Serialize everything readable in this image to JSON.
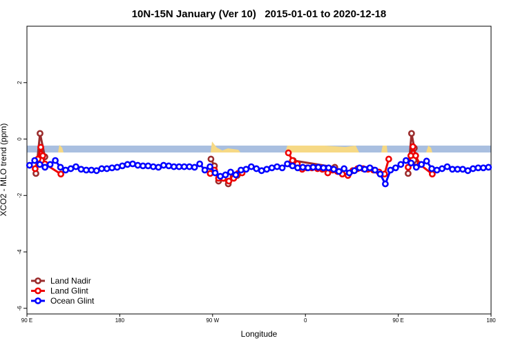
{
  "chart_data": {
    "type": "line",
    "title": "10N-15N January (Ver 10)   2015-01-01 to 2020-12-18",
    "x_label": "Longitude",
    "y_label": "XCO2 - MLO trend (ppm)",
    "xlim": [
      90,
      540
    ],
    "xticks": [
      {
        "value": 90,
        "label": "90 E"
      },
      180,
      {
        "value": 270,
        "label": "90 W"
      },
      {
        "value": 360,
        "label": "0"
      },
      {
        "value": 450,
        "label": "90 E"
      },
      {
        "value": 540,
        "label": "180"
      }
    ],
    "ylim": [
      -6.2,
      4
    ],
    "yticks": [
      -6,
      -4,
      -2,
      0,
      2
    ],
    "legend": "bottomleft",
    "series": [
      {
        "name": "Land Nadir",
        "color": "#9b2d2d",
        "x": [
          98.7,
          102.7,
          107.4,
          null,
          268.4,
          271.8,
          275.8,
          280.5,
          285.2,
          289.9,
          293.9,
          null,
          344.2,
          348.2,
          388.5,
          null,
          459.6,
          462.9,
          465.6,
          468.3
        ],
        "values": [
          -1.22,
          0.2,
          -0.63,
          null,
          -0.71,
          -0.95,
          -1.49,
          -1.39,
          -1.59,
          -1.34,
          -1.29,
          null,
          -0.88,
          -0.76,
          -1.0,
          null,
          -1.22,
          0.2,
          -0.32,
          -0.88
        ]
      },
      {
        "name": "Land Glint",
        "color": "#ee0000",
        "x": [
          98.0,
          100.7,
          103.4,
          105.4,
          107.4,
          122.9,
          null,
          267.7,
          271.8,
          275.8,
          280.5,
          285.8,
          290.5,
          294.6,
          298.6,
          null,
          343.5,
          347.5,
          352.2,
          356.9,
          361.6,
          366.3,
          371.7,
          376.4,
          381.7,
          386.4,
          391.1,
          395.8,
          401.2,
          405.9,
          410.6,
          416.0,
          420.6,
          426.0,
          431.4,
          436.7,
          440.8,
          null,
          459.6,
          462.2,
          464.2,
          466.9,
          470.9,
          483.0
        ],
        "values": [
          -1.05,
          -0.71,
          -0.29,
          -0.59,
          -0.88,
          -1.24,
          null,
          -1.22,
          -1.1,
          -1.39,
          -1.39,
          -1.49,
          -1.39,
          -1.22,
          -1.2,
          null,
          -0.49,
          -0.76,
          -0.88,
          -1.07,
          -1.02,
          -1.02,
          -1.05,
          -1.07,
          -1.2,
          -1.1,
          -1.15,
          -1.24,
          -1.29,
          -1.12,
          -1.05,
          -1.05,
          -1.07,
          -1.1,
          -1.17,
          -1.24,
          -0.71,
          null,
          -1.0,
          -0.59,
          -0.27,
          -0.59,
          -0.9,
          -1.24
        ]
      },
      {
        "name": "Ocean Glint",
        "color": "#0000ff",
        "x": [
          92.5,
          97.5,
          102.5,
          107.5,
          112.5,
          117.5,
          122.5,
          127.5,
          132.5,
          137.5,
          142.5,
          147.5,
          152.5,
          157.5,
          162.5,
          167.5,
          172.5,
          177.5,
          182.5,
          187.5,
          192.5,
          197.5,
          202.5,
          207.5,
          212.5,
          217.5,
          222.5,
          227.5,
          232.5,
          237.5,
          242.5,
          247.5,
          252.5,
          257.5,
          262.5,
          267.5,
          272.5,
          277.5,
          282.5,
          287.5,
          292.5,
          297.5,
          302.5,
          307.5,
          312.5,
          317.5,
          322.5,
          327.5,
          332.5,
          337.5,
          342.5,
          347.5,
          352.5,
          357.5,
          362.5,
          367.5,
          372.5,
          377.5,
          382.5,
          387.5,
          392.5,
          397.5,
          402.5,
          407.5,
          412.5,
          417.5,
          422.5,
          427.5,
          432.5,
          437.5,
          442.5,
          447.5,
          452.5,
          457.5,
          462.5,
          467.5,
          472.5,
          477.5,
          482.5,
          487.5,
          492.5,
          497.5,
          502.5,
          507.5,
          512.5,
          517.5,
          522.5,
          527.5,
          532.5,
          537.5
        ],
        "values": [
          -0.93,
          -0.76,
          -0.9,
          -1.0,
          -0.9,
          -0.76,
          -1.0,
          -1.1,
          -1.05,
          -0.98,
          -1.07,
          -1.1,
          -1.1,
          -1.12,
          -1.05,
          -1.05,
          -1.02,
          -1.0,
          -0.95,
          -0.9,
          -0.88,
          -0.93,
          -0.95,
          -0.95,
          -0.98,
          -1.0,
          -0.93,
          -0.95,
          -0.98,
          -0.98,
          -0.98,
          -0.98,
          -1.0,
          -0.88,
          -1.1,
          -0.98,
          -1.2,
          -1.32,
          -1.27,
          -1.17,
          -1.27,
          -1.1,
          -1.07,
          -0.98,
          -1.05,
          -1.12,
          -1.07,
          -1.02,
          -0.98,
          -1.02,
          -0.88,
          -0.95,
          -1.02,
          -1.0,
          -1.02,
          -1.0,
          -1.0,
          -1.02,
          -1.02,
          -1.07,
          -1.15,
          -1.05,
          -1.2,
          -1.12,
          -1.02,
          -1.07,
          -1.02,
          -1.1,
          -1.24,
          -1.59,
          -1.1,
          -1.02,
          -0.9,
          -0.76,
          -0.85,
          -1.0,
          -0.9,
          -0.78,
          -1.05,
          -1.1,
          -1.05,
          -0.98,
          -1.07,
          -1.07,
          -1.07,
          -1.12,
          -1.05,
          -1.02,
          -1.02,
          -1.0
        ]
      }
    ]
  }
}
